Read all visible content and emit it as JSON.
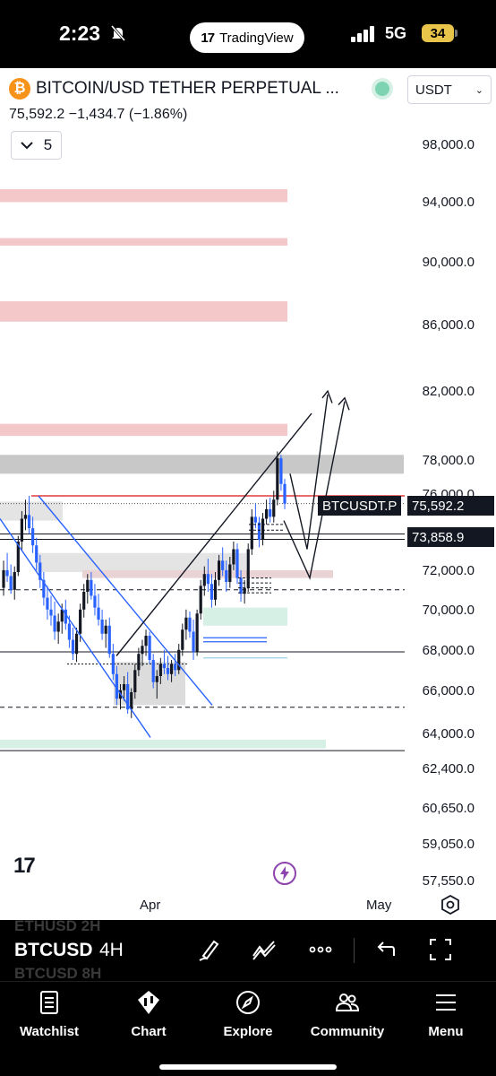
{
  "status_bar": {
    "time": "2:23",
    "app_pill": "TradingView",
    "network": "5G",
    "battery": "34"
  },
  "header": {
    "symbol": "BITCOIN/USD TETHER PERPETUAL ...",
    "price_line": "75,592.2  −1,434.7 (−1.86%)",
    "currency": "USDT",
    "collapse_count": "5"
  },
  "chart_data": {
    "type": "candlestick",
    "y_axis_labels": [
      "98,000.0",
      "94,000.0",
      "90,000.0",
      "86,000.0",
      "82,000.0",
      "78,000.0",
      "76,000.0",
      "72,000.0",
      "70,000.0",
      "68,000.0",
      "66,000.0",
      "64,000.0",
      "62,400.0",
      "60,650.0",
      "59,050.0",
      "57,550.0"
    ],
    "x_axis_labels": [
      "Apr",
      "May"
    ],
    "price_tags": [
      {
        "label": "BTCUSDT.P",
        "value": "75,592.2"
      },
      {
        "value": "73,858.9"
      }
    ],
    "candles": [
      [
        71200,
        72600,
        70800,
        72100
      ],
      [
        72100,
        73000,
        71500,
        71800
      ],
      [
        71800,
        72400,
        70900,
        71100
      ],
      [
        71100,
        72300,
        70600,
        72000
      ],
      [
        72000,
        73900,
        71800,
        73600
      ],
      [
        73600,
        75200,
        73100,
        74800
      ],
      [
        74800,
        75800,
        74200,
        75000
      ],
      [
        75000,
        76000,
        74000,
        74300
      ],
      [
        74300,
        74900,
        73000,
        73400
      ],
      [
        73400,
        73800,
        72100,
        72500
      ],
      [
        72500,
        72900,
        71200,
        71600
      ],
      [
        71600,
        72000,
        70300,
        70700
      ],
      [
        70700,
        71300,
        69600,
        70100
      ],
      [
        70100,
        70800,
        69300,
        69800
      ],
      [
        69800,
        70500,
        68600,
        69000
      ],
      [
        69000,
        69900,
        68400,
        69500
      ],
      [
        69500,
        70400,
        68900,
        70100
      ],
      [
        70100,
        70600,
        69100,
        69400
      ],
      [
        69400,
        69800,
        68200,
        68600
      ],
      [
        68600,
        69200,
        67600,
        67900
      ],
      [
        67900,
        69200,
        67500,
        68900
      ],
      [
        68900,
        70400,
        68500,
        70100
      ],
      [
        70100,
        71400,
        69700,
        71000
      ],
      [
        71000,
        71900,
        70400,
        71600
      ],
      [
        71600,
        72000,
        70600,
        70800
      ],
      [
        70800,
        71400,
        69800,
        70200
      ],
      [
        70200,
        70900,
        69300,
        69600
      ],
      [
        69600,
        70100,
        68600,
        68900
      ],
      [
        68900,
        69600,
        68200,
        69300
      ],
      [
        69300,
        69700,
        67700,
        67900
      ],
      [
        67900,
        68400,
        66600,
        66900
      ],
      [
        66900,
        67300,
        65400,
        65700
      ],
      [
        65700,
        66400,
        65200,
        66100
      ],
      [
        66100,
        66800,
        65600,
        66400
      ],
      [
        66400,
        67000,
        65000,
        65200
      ],
      [
        65200,
        66200,
        64800,
        66000
      ],
      [
        66000,
        67400,
        65700,
        67100
      ],
      [
        67100,
        68200,
        66800,
        67900
      ],
      [
        67900,
        68600,
        67300,
        68300
      ],
      [
        68300,
        69100,
        67800,
        68800
      ],
      [
        68800,
        69000,
        67400,
        67600
      ],
      [
        67600,
        67900,
        66200,
        66500
      ],
      [
        66500,
        67100,
        65700,
        66800
      ],
      [
        66800,
        67700,
        66400,
        67400
      ],
      [
        67400,
        68100,
        66900,
        67200
      ],
      [
        67200,
        67800,
        66600,
        66900
      ],
      [
        66900,
        67600,
        66500,
        67400
      ],
      [
        67400,
        67900,
        66800,
        67100
      ],
      [
        67100,
        68400,
        66900,
        68100
      ],
      [
        68100,
        69400,
        67800,
        69100
      ],
      [
        69100,
        70100,
        68600,
        69700
      ],
      [
        69700,
        70000,
        68700,
        69000
      ],
      [
        69000,
        69600,
        67600,
        68000
      ],
      [
        68000,
        70100,
        67800,
        69900
      ],
      [
        69900,
        71600,
        69600,
        71300
      ],
      [
        71300,
        72300,
        70800,
        71900
      ],
      [
        71900,
        72700,
        71000,
        71400
      ],
      [
        71400,
        71900,
        70200,
        70600
      ],
      [
        70600,
        72000,
        70300,
        71600
      ],
      [
        71600,
        72900,
        71300,
        72600
      ],
      [
        72600,
        73300,
        71800,
        72100
      ],
      [
        72100,
        72600,
        71000,
        71500
      ],
      [
        71500,
        72800,
        71200,
        72400
      ],
      [
        72400,
        73600,
        72100,
        73200
      ],
      [
        73200,
        73500,
        71400,
        71700
      ],
      [
        71700,
        72100,
        70500,
        70900
      ],
      [
        70900,
        71600,
        70400,
        71200
      ],
      [
        71200,
        73500,
        71000,
        73200
      ],
      [
        73200,
        75300,
        72900,
        74900
      ],
      [
        74900,
        75600,
        74300,
        74600
      ],
      [
        74600,
        74900,
        73300,
        73700
      ],
      [
        73700,
        75100,
        73400,
        74800
      ],
      [
        74800,
        75800,
        74500,
        75300
      ],
      [
        75300,
        75900,
        74600,
        74900
      ],
      [
        74900,
        76300,
        74600,
        75800
      ],
      [
        75800,
        78600,
        75500,
        78200
      ],
      [
        78200,
        78400,
        76300,
        76700
      ],
      [
        76700,
        77000,
        75300,
        75592
      ]
    ],
    "zones": [
      {
        "type": "supply",
        "from": 94100,
        "to": 95000
      },
      {
        "type": "supply",
        "from": 91200,
        "to": 91700
      },
      {
        "type": "supply",
        "from": 86300,
        "to": 87600
      },
      {
        "type": "supply",
        "from": 79500,
        "to": 80200
      },
      {
        "type": "resistance",
        "from": 77300,
        "to": 78400
      },
      {
        "type": "demand",
        "from": 69300,
        "to": 70200
      },
      {
        "type": "demand",
        "from": 63400,
        "to": 63800
      }
    ],
    "levels": [
      76000,
      73858.9,
      71100,
      68000,
      65300,
      63300
    ],
    "ylim": [
      57550,
      98000
    ]
  },
  "toolbar": {
    "ghost_above": "ETHUSD  2H",
    "symbol": "BTCUSD",
    "timeframe": "4H",
    "ghost_below": "BTCUSD  8H"
  },
  "nav": [
    {
      "label": "Watchlist",
      "icon": "watchlist-icon"
    },
    {
      "label": "Chart",
      "icon": "chart-icon"
    },
    {
      "label": "Explore",
      "icon": "compass-icon"
    },
    {
      "label": "Community",
      "icon": "community-icon"
    },
    {
      "label": "Menu",
      "icon": "menu-icon"
    }
  ],
  "colors": {
    "up": "#131722",
    "down": "#2962ff",
    "supply": "#f4c7c9",
    "demand": "#d6f0e6",
    "resistance": "#c8c8c8",
    "level_red": "#e03c3c",
    "trend": "#2962ff"
  }
}
